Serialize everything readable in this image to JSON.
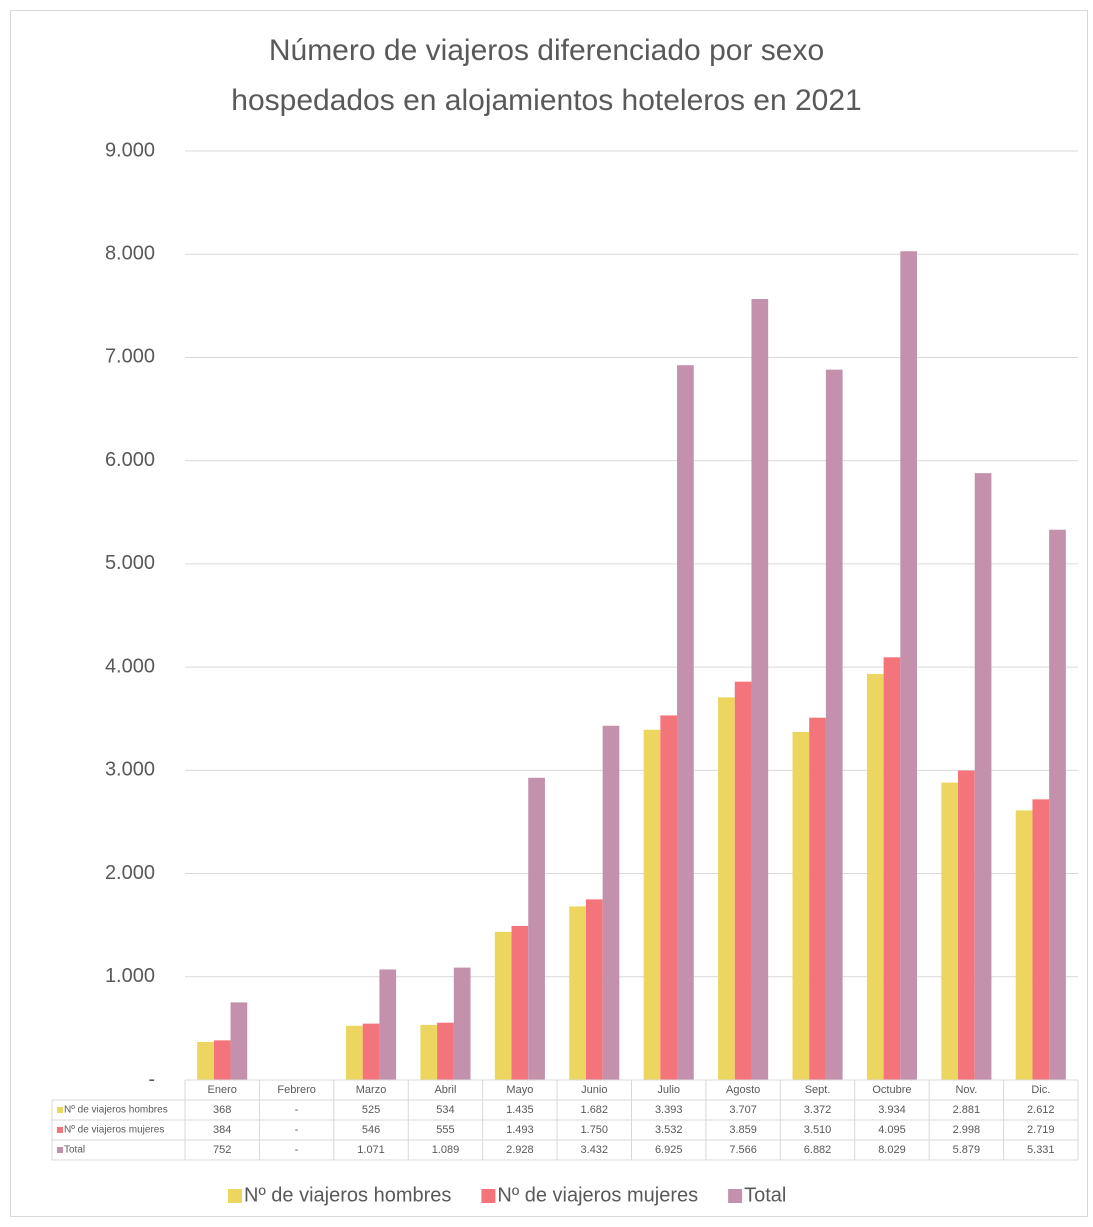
{
  "chart_data": {
    "type": "bar",
    "title": "Número de viajeros diferenciado por sexo hospedados en alojamientos hoteleros en 2021",
    "categories": [
      "Enero",
      "Febrero",
      "Marzo",
      "Abril",
      "Mayo",
      "Junio",
      "Julio",
      "Agosto",
      "Sept.",
      "Octubre",
      "Nov.",
      "Dic."
    ],
    "series": [
      {
        "name": "Nº de viajeros hombres",
        "color": "#edd65f",
        "values": [
          368,
          0,
          525,
          534,
          1435,
          1682,
          3393,
          3707,
          3372,
          3934,
          2881,
          2612
        ],
        "value_labels": [
          "368",
          "-",
          "525",
          "534",
          "1.435",
          "1.682",
          "3.393",
          "3.707",
          "3.372",
          "3.934",
          "2.881",
          "2.612"
        ]
      },
      {
        "name": "Nº de viajeros mujeres",
        "color": "#f4747b",
        "values": [
          384,
          0,
          546,
          555,
          1493,
          1750,
          3532,
          3859,
          3510,
          4095,
          2998,
          2719
        ],
        "value_labels": [
          "384",
          "-",
          "546",
          "555",
          "1.493",
          "1.750",
          "3.532",
          "3.859",
          "3.510",
          "4.095",
          "2.998",
          "2.719"
        ]
      },
      {
        "name": "Total",
        "color": "#c491ac",
        "values": [
          752,
          0,
          1071,
          1089,
          2928,
          3432,
          6925,
          7566,
          6882,
          8029,
          5879,
          5331
        ],
        "value_labels": [
          "752",
          "-",
          "1.071",
          "1.089",
          "2.928",
          "3.432",
          "6.925",
          "7.566",
          "6.882",
          "8.029",
          "5.879",
          "5.331"
        ]
      }
    ],
    "ylim": [
      0,
      9000
    ],
    "yticks": [
      {
        "value": 0,
        "label": "-"
      },
      {
        "value": 1000,
        "label": "1.000"
      },
      {
        "value": 2000,
        "label": "2.000"
      },
      {
        "value": 3000,
        "label": "3.000"
      },
      {
        "value": 4000,
        "label": "4.000"
      },
      {
        "value": 5000,
        "label": "5.000"
      },
      {
        "value": 6000,
        "label": "6.000"
      },
      {
        "value": 7000,
        "label": "7.000"
      },
      {
        "value": 8000,
        "label": "8.000"
      },
      {
        "value": 9000,
        "label": "9.000"
      }
    ],
    "grid": true,
    "legend": "bottom",
    "data_table": true
  }
}
